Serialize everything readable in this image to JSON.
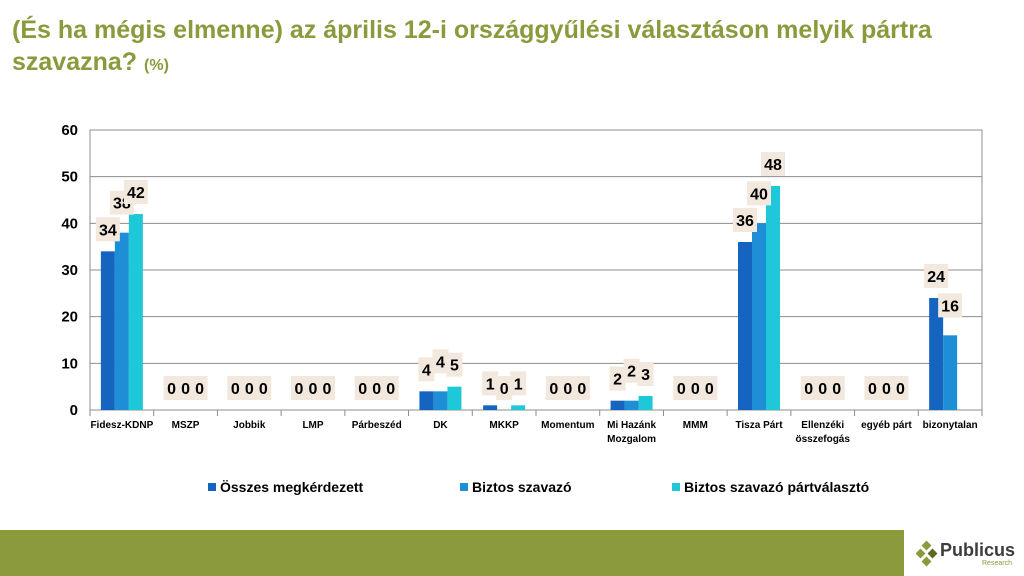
{
  "title": {
    "main": "(És ha mégis elmenne) az április 12-i országgyűlési választáson melyik pártra szavazna?",
    "unit": "(%)"
  },
  "chart_data": {
    "type": "bar",
    "categories": [
      "Fidesz-KDNP",
      "MSZP",
      "Jobbik",
      "LMP",
      "Párbeszéd",
      "DK",
      "MKKP",
      "Momentum",
      "Mi Hazánk Mozgalom",
      "MMM",
      "Tisza Párt",
      "Ellenzéki összefogás",
      "egyéb párt",
      "bizonytalan"
    ],
    "series": [
      {
        "name": "Összes megkérdezett",
        "color": "#1565c0",
        "values": [
          34,
          0,
          0,
          0,
          0,
          4,
          1,
          0,
          2,
          0,
          36,
          0,
          0,
          24
        ]
      },
      {
        "name": "Biztos szavazó",
        "color": "#1e8fd6",
        "values": [
          38,
          0,
          0,
          0,
          0,
          4,
          0,
          0,
          2,
          0,
          40,
          0,
          0,
          16
        ]
      },
      {
        "name": "Biztos szavazó pártválasztó",
        "color": "#1ec8d8",
        "values": [
          42,
          0,
          0,
          0,
          0,
          5,
          1,
          0,
          3,
          0,
          48,
          0,
          0,
          null
        ]
      }
    ],
    "ylim": [
      0,
      60
    ],
    "yticks": [
      0,
      10,
      20,
      30,
      40,
      50,
      60
    ],
    "grid": true,
    "legend": "bottom",
    "xlabel": "",
    "ylabel": ""
  },
  "footer": {
    "logo_name": "Publicus",
    "logo_sub": "Research"
  }
}
